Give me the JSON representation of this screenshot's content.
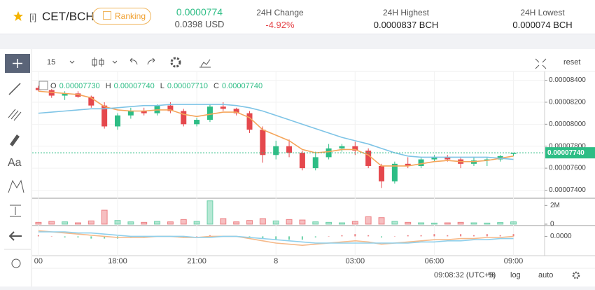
{
  "header": {
    "symbol_prefix": "[i]",
    "pair": "CET/BCH",
    "ranking": "Ranking",
    "price": "0.0000774",
    "price_usd": "0.0398 USD",
    "stats": [
      {
        "label": "24H Change",
        "value": "-4.92%"
      },
      {
        "label": "24H Highest",
        "value": "0.0000837 BCH"
      },
      {
        "label": "24H Lowest",
        "value": "0.000074 BCH"
      }
    ]
  },
  "toolbar": {
    "interval": "15",
    "reset": "reset"
  },
  "left_tools": {
    "text_tool": "Aa"
  },
  "bottom": {
    "time": "09:08:32 (UTC+9)",
    "options": [
      "%",
      "log",
      "auto"
    ]
  },
  "chart_data": {
    "type": "candlestick",
    "ohlc_legend": [
      {
        "label": "O",
        "value": "0.00007730"
      },
      {
        "label": "H",
        "value": "0.00007740"
      },
      {
        "label": "L",
        "value": "0.00007710"
      },
      {
        "label": "C",
        "value": "0.00007740"
      }
    ],
    "last_price": {
      "value": 7.74e-05,
      "label": "0.00007740"
    },
    "up_color": "#2dbd85",
    "down_color": "#e5484d",
    "x": [
      0,
      0.5,
      1,
      1.5,
      2,
      2.5,
      3,
      3.5,
      4,
      4.5,
      5,
      5.5,
      6,
      6.5,
      7,
      7.5,
      8,
      8.5,
      9,
      9.5,
      10,
      10.5,
      11,
      11.5,
      12,
      12.5,
      13,
      13.5,
      14,
      14.5,
      15,
      15.5,
      16,
      16.5,
      17,
      17.5,
      18
    ],
    "xlim": [
      -0.13,
      19.1
    ],
    "xticks": [
      {
        "value": 0,
        "label": "00"
      },
      {
        "value": 3,
        "label": "18:00"
      },
      {
        "value": 6,
        "label": "21:00"
      },
      {
        "value": 9,
        "label": "8"
      },
      {
        "value": 12,
        "label": "03:00"
      },
      {
        "value": 15,
        "label": "06:00"
      },
      {
        "value": 18,
        "label": "09:00"
      }
    ],
    "open": [
      8.33e-05,
      8.31e-05,
      8.26e-05,
      8.28e-05,
      8.25e-05,
      8.17e-05,
      7.98e-05,
      8.08e-05,
      8.12e-05,
      8.1e-05,
      8.17e-05,
      8.12e-05,
      8e-05,
      8.04e-05,
      8.16e-05,
      8.14e-05,
      8.1e-05,
      7.95e-05,
      7.72e-05,
      7.8e-05,
      7.74e-05,
      7.6e-05,
      7.7e-05,
      7.78e-05,
      7.8e-05,
      7.76e-05,
      7.62e-05,
      7.48e-05,
      7.64e-05,
      7.62e-05,
      7.68e-05,
      7.7e-05,
      7.68e-05,
      7.64e-05,
      7.67e-05,
      7.68e-05,
      7.73e-05
    ],
    "high": [
      8.35e-05,
      8.32e-05,
      8.3e-05,
      8.3e-05,
      8.26e-05,
      8.2e-05,
      8.1e-05,
      8.15e-05,
      8.15e-05,
      8.18e-05,
      8.2e-05,
      8.14e-05,
      8.06e-05,
      8.18e-05,
      8.2e-05,
      8.15e-05,
      8.12e-05,
      7.98e-05,
      7.85e-05,
      7.86e-05,
      7.76e-05,
      7.75e-05,
      7.82e-05,
      7.82e-05,
      7.84e-05,
      7.78e-05,
      7.64e-05,
      7.66e-05,
      7.7e-05,
      7.7e-05,
      7.72e-05,
      7.72e-05,
      7.7e-05,
      7.7e-05,
      7.7e-05,
      7.72e-05,
      7.74e-05
    ],
    "low": [
      8.3e-05,
      8.24e-05,
      8.22e-05,
      8.24e-05,
      8.15e-05,
      7.96e-05,
      7.95e-05,
      8.05e-05,
      8.08e-05,
      8.08e-05,
      8.1e-05,
      7.98e-05,
      7.98e-05,
      8.02e-05,
      8.12e-05,
      8.08e-05,
      7.92e-05,
      7.65e-05,
      7.68e-05,
      7.7e-05,
      7.58e-05,
      7.58e-05,
      7.68e-05,
      7.75e-05,
      7.72e-05,
      7.6e-05,
      7.42e-05,
      7.46e-05,
      7.6e-05,
      7.6e-05,
      7.66e-05,
      7.66e-05,
      7.6e-05,
      7.62e-05,
      7.62e-05,
      7.66e-05,
      7.71e-05
    ],
    "close": [
      8.31e-05,
      8.26e-05,
      8.28e-05,
      8.25e-05,
      8.17e-05,
      7.98e-05,
      8.08e-05,
      8.12e-05,
      8.1e-05,
      8.17e-05,
      8.12e-05,
      8e-05,
      8.04e-05,
      8.16e-05,
      8.14e-05,
      8.1e-05,
      7.95e-05,
      7.72e-05,
      7.8e-05,
      7.74e-05,
      7.6e-05,
      7.7e-05,
      7.78e-05,
      7.8e-05,
      7.76e-05,
      7.62e-05,
      7.48e-05,
      7.64e-05,
      7.62e-05,
      7.68e-05,
      7.7e-05,
      7.68e-05,
      7.64e-05,
      7.67e-05,
      7.68e-05,
      7.71e-05,
      7.74e-05
    ],
    "ylim": [
      7.333e-05,
      8.48e-05
    ],
    "yticks": [
      {
        "value": 8.4e-05,
        "label": "0.00008400"
      },
      {
        "value": 8.2e-05,
        "label": "0.00008200"
      },
      {
        "value": 8e-05,
        "label": "0.00008000"
      },
      {
        "value": 7.8e-05,
        "label": "0.00007800"
      },
      {
        "value": 7.6e-05,
        "label": "0.00007600"
      },
      {
        "value": 7.4e-05,
        "label": "0.00007400"
      }
    ],
    "series": [
      {
        "color": "#f5a55a",
        "values": [
          8.3e-05,
          8.29e-05,
          8.28e-05,
          8.27e-05,
          8.24e-05,
          8.16e-05,
          8.13e-05,
          8.12e-05,
          8.12e-05,
          8.13e-05,
          8.13e-05,
          8.09e-05,
          8.07e-05,
          8.09e-05,
          8.11e-05,
          8.11e-05,
          8.06e-05,
          7.95e-05,
          7.9e-05,
          7.85e-05,
          7.77e-05,
          7.74e-05,
          7.75e-05,
          7.77e-05,
          7.77e-05,
          7.72e-05,
          7.62e-05,
          7.62e-05,
          7.62e-05,
          7.64e-05,
          7.66e-05,
          7.67e-05,
          7.66e-05,
          7.66e-05,
          7.67e-05,
          7.69e-05,
          7.71e-05
        ]
      },
      {
        "color": "#7ec4e6",
        "values": [
          8.1e-05,
          8.11e-05,
          8.12e-05,
          8.13e-05,
          8.14e-05,
          8.14e-05,
          8.15e-05,
          8.16e-05,
          8.17e-05,
          8.17e-05,
          8.18e-05,
          8.18e-05,
          8.18e-05,
          8.18e-05,
          8.18e-05,
          8.17e-05,
          8.15e-05,
          8.12e-05,
          8.08e-05,
          8.04e-05,
          8e-05,
          7.96e-05,
          7.92e-05,
          7.88e-05,
          7.85e-05,
          7.82e-05,
          7.78e-05,
          7.74e-05,
          7.71e-05,
          7.7e-05,
          7.7e-05,
          7.7e-05,
          7.7e-05,
          7.7e-05,
          7.7e-05,
          7.69e-05,
          7.68e-05
        ]
      }
    ],
    "volume": {
      "values": [
        200000,
        300000,
        250000,
        150000,
        350000,
        1500000,
        400000,
        250000,
        200000,
        300000,
        250000,
        500000,
        300000,
        2500000,
        600000,
        250000,
        400000,
        600000,
        350000,
        500000,
        450000,
        250000,
        200000,
        150000,
        300000,
        800000,
        700000,
        300000,
        200000,
        150000,
        120000,
        150000,
        200000,
        150000,
        120000,
        180000,
        250000
      ],
      "ylim": [
        0,
        2700000
      ],
      "yticks": [
        {
          "value": 2000000,
          "label": "2M"
        },
        0
      ]
    },
    "macd": {
      "histogram": [
        1e-08,
        0,
        -1e-08,
        -1e-08,
        -2e-08,
        -2e-08,
        -2e-08,
        -1e-08,
        -1e-08,
        0,
        0,
        -1e-08,
        0,
        1e-08,
        0,
        0,
        -1e-08,
        -2e-08,
        -3e-08,
        -3e-08,
        -3e-08,
        -1e-08,
        0,
        1e-08,
        2e-08,
        1e-08,
        -1e-08,
        0,
        1e-08,
        1e-08,
        2e-08,
        1e-08,
        2e-08,
        1e-08,
        2e-08,
        1e-08,
        2e-08
      ],
      "lines": [
        {
          "color": "#f5b98a",
          "values": [
            5e-08,
            4e-08,
            3e-08,
            2e-08,
            1e-08,
            0,
            -1e-08,
            -1e-08,
            -1e-08,
            0,
            0,
            -1e-08,
            -1e-08,
            0,
            0,
            0,
            -2e-08,
            -4e-08,
            -6e-08,
            -7e-08,
            -8e-08,
            -7e-08,
            -6e-08,
            -5e-08,
            -4e-08,
            -5e-08,
            -7e-08,
            -6e-08,
            -5e-08,
            -4e-08,
            -3e-08,
            -3e-08,
            -2e-08,
            -2e-08,
            -1e-08,
            -1e-08,
            0
          ]
        },
        {
          "color": "#8fd0ec",
          "values": [
            4e-08,
            4e-08,
            4e-08,
            3e-08,
            3e-08,
            2e-08,
            1e-08,
            0,
            0,
            0,
            0,
            0,
            -1e-08,
            -1e-08,
            0,
            0,
            -1e-08,
            -2e-08,
            -3e-08,
            -4e-08,
            -5e-08,
            -6e-08,
            -6e-08,
            -6e-08,
            -6e-08,
            -6e-08,
            -6e-08,
            -6e-08,
            -6e-08,
            -5e-08,
            -5e-08,
            -4e-08,
            -4e-08,
            -3e-08,
            -3e-08,
            -2e-08,
            -2e-08
          ]
        }
      ],
      "ylim": [
        -1.1e-07,
        9e-08
      ],
      "yticks": [
        {
          "value": 0,
          "label": "0.0000"
        }
      ]
    }
  }
}
